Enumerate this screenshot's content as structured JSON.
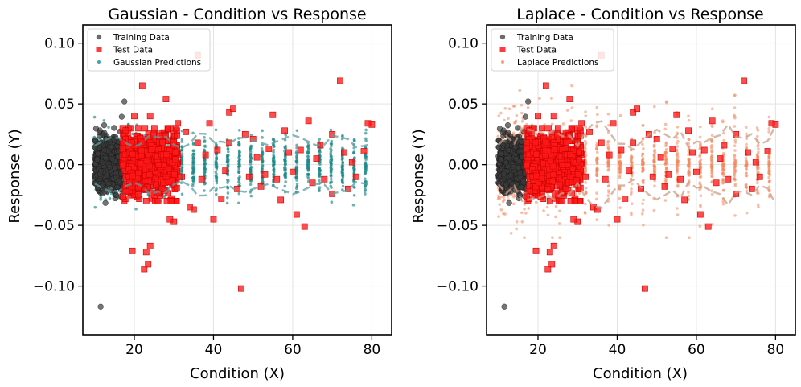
{
  "chart_data": [
    {
      "type": "scatter",
      "title": "Gaussian - Condition vs Response",
      "xlabel": "Condition (X)",
      "ylabel": "Response (Y)",
      "xlim": [
        7,
        85
      ],
      "ylim": [
        -0.14,
        0.115
      ],
      "xticks": [
        20,
        40,
        60,
        80
      ],
      "xtick_labels": [
        "20",
        "40",
        "60",
        "80"
      ],
      "yticks": [
        0.1,
        0.05,
        0.0,
        -0.05,
        -0.1
      ],
      "ytick_labels": [
        "0.10",
        "0.05",
        "0.00",
        "−0.05",
        "−0.10"
      ],
      "grid": true,
      "legend_position": "top-left",
      "series": [
        {
          "name": "Training Data",
          "marker": "circle",
          "color": "#3a3a3a",
          "x_range": [
            10,
            17
          ],
          "y_spread": 0.02
        },
        {
          "name": "Test Data",
          "marker": "square",
          "color": "#ff1a1a"
        },
        {
          "name": "Gaussian Predictions",
          "marker": "small-circle",
          "color": "#1f8a8a"
        }
      ],
      "band_color": "#5f9ea0",
      "prediction_color": "#1f8a8a",
      "model": "gaussian"
    },
    {
      "type": "scatter",
      "title": "Laplace - Condition vs Response",
      "xlabel": "Condition (X)",
      "ylabel": "Response (Y)",
      "xlim": [
        7,
        85
      ],
      "ylim": [
        -0.14,
        0.115
      ],
      "xticks": [
        20,
        40,
        60,
        80
      ],
      "xtick_labels": [
        "20",
        "40",
        "60",
        "80"
      ],
      "yticks": [
        0.1,
        0.05,
        0.0,
        -0.05,
        -0.1
      ],
      "ytick_labels": [
        "0.10",
        "0.05",
        "0.00",
        "−0.05",
        "−0.10"
      ],
      "grid": true,
      "legend_position": "top-left",
      "series": [
        {
          "name": "Training Data",
          "marker": "circle",
          "color": "#3a3a3a",
          "x_range": [
            10,
            17
          ],
          "y_spread": 0.02
        },
        {
          "name": "Test Data",
          "marker": "square",
          "color": "#ff1a1a"
        },
        {
          "name": "Laplace Predictions",
          "marker": "small-circle",
          "color": "#f4895f"
        }
      ],
      "band_color": "#c9a08a",
      "prediction_color": "#f4895f",
      "model": "laplace"
    }
  ],
  "test_points": [
    [
      20,
      0.04
    ],
    [
      22,
      0.065
    ],
    [
      24,
      0.04
    ],
    [
      28,
      0.054
    ],
    [
      31,
      0.034
    ],
    [
      36,
      0.09
    ],
    [
      39,
      0.034
    ],
    [
      44,
      0.043
    ],
    [
      45,
      0.046
    ],
    [
      55,
      0.041
    ],
    [
      64,
      0.036
    ],
    [
      72,
      0.069
    ],
    [
      80,
      0.033
    ],
    [
      79,
      0.034
    ],
    [
      70,
      0.025
    ],
    [
      58,
      0.028
    ],
    [
      48,
      0.025
    ],
    [
      50,
      0.021
    ],
    [
      62,
      0.012
    ],
    [
      66,
      0.005
    ],
    [
      75,
      0.002
    ],
    [
      78,
      0.011
    ],
    [
      68,
      -0.012
    ],
    [
      74,
      -0.02
    ],
    [
      70,
      -0.024
    ],
    [
      60,
      -0.006
    ],
    [
      56,
      -0.012
    ],
    [
      52,
      -0.018
    ],
    [
      46,
      -0.02
    ],
    [
      42,
      -0.028
    ],
    [
      37,
      -0.012
    ],
    [
      34,
      -0.035
    ],
    [
      30,
      -0.047
    ],
    [
      29,
      -0.045
    ],
    [
      35,
      -0.037
    ],
    [
      40,
      -0.045
    ],
    [
      57,
      -0.029
    ],
    [
      61,
      -0.041
    ],
    [
      63,
      -0.051
    ],
    [
      47,
      -0.102
    ],
    [
      19.5,
      -0.071
    ],
    [
      23,
      -0.072
    ],
    [
      24,
      -0.067
    ],
    [
      23.5,
      -0.082
    ],
    [
      22.5,
      -0.086
    ],
    [
      27,
      -0.02
    ],
    [
      26,
      -0.03
    ],
    [
      21,
      -0.025
    ],
    [
      30,
      0.016
    ],
    [
      33,
      0.027
    ],
    [
      38,
      0.008
    ],
    [
      41,
      0.012
    ],
    [
      43,
      -0.005
    ],
    [
      51,
      0.006
    ],
    [
      53,
      -0.008
    ],
    [
      59,
      0.01
    ],
    [
      65,
      -0.015
    ],
    [
      67,
      0.016
    ],
    [
      73,
      0.01
    ],
    [
      76,
      -0.01
    ],
    [
      44,
      0.018
    ],
    [
      49,
      -0.01
    ],
    [
      54,
      0.013
    ],
    [
      32,
      -0.01
    ],
    [
      36,
      0.018
    ]
  ]
}
